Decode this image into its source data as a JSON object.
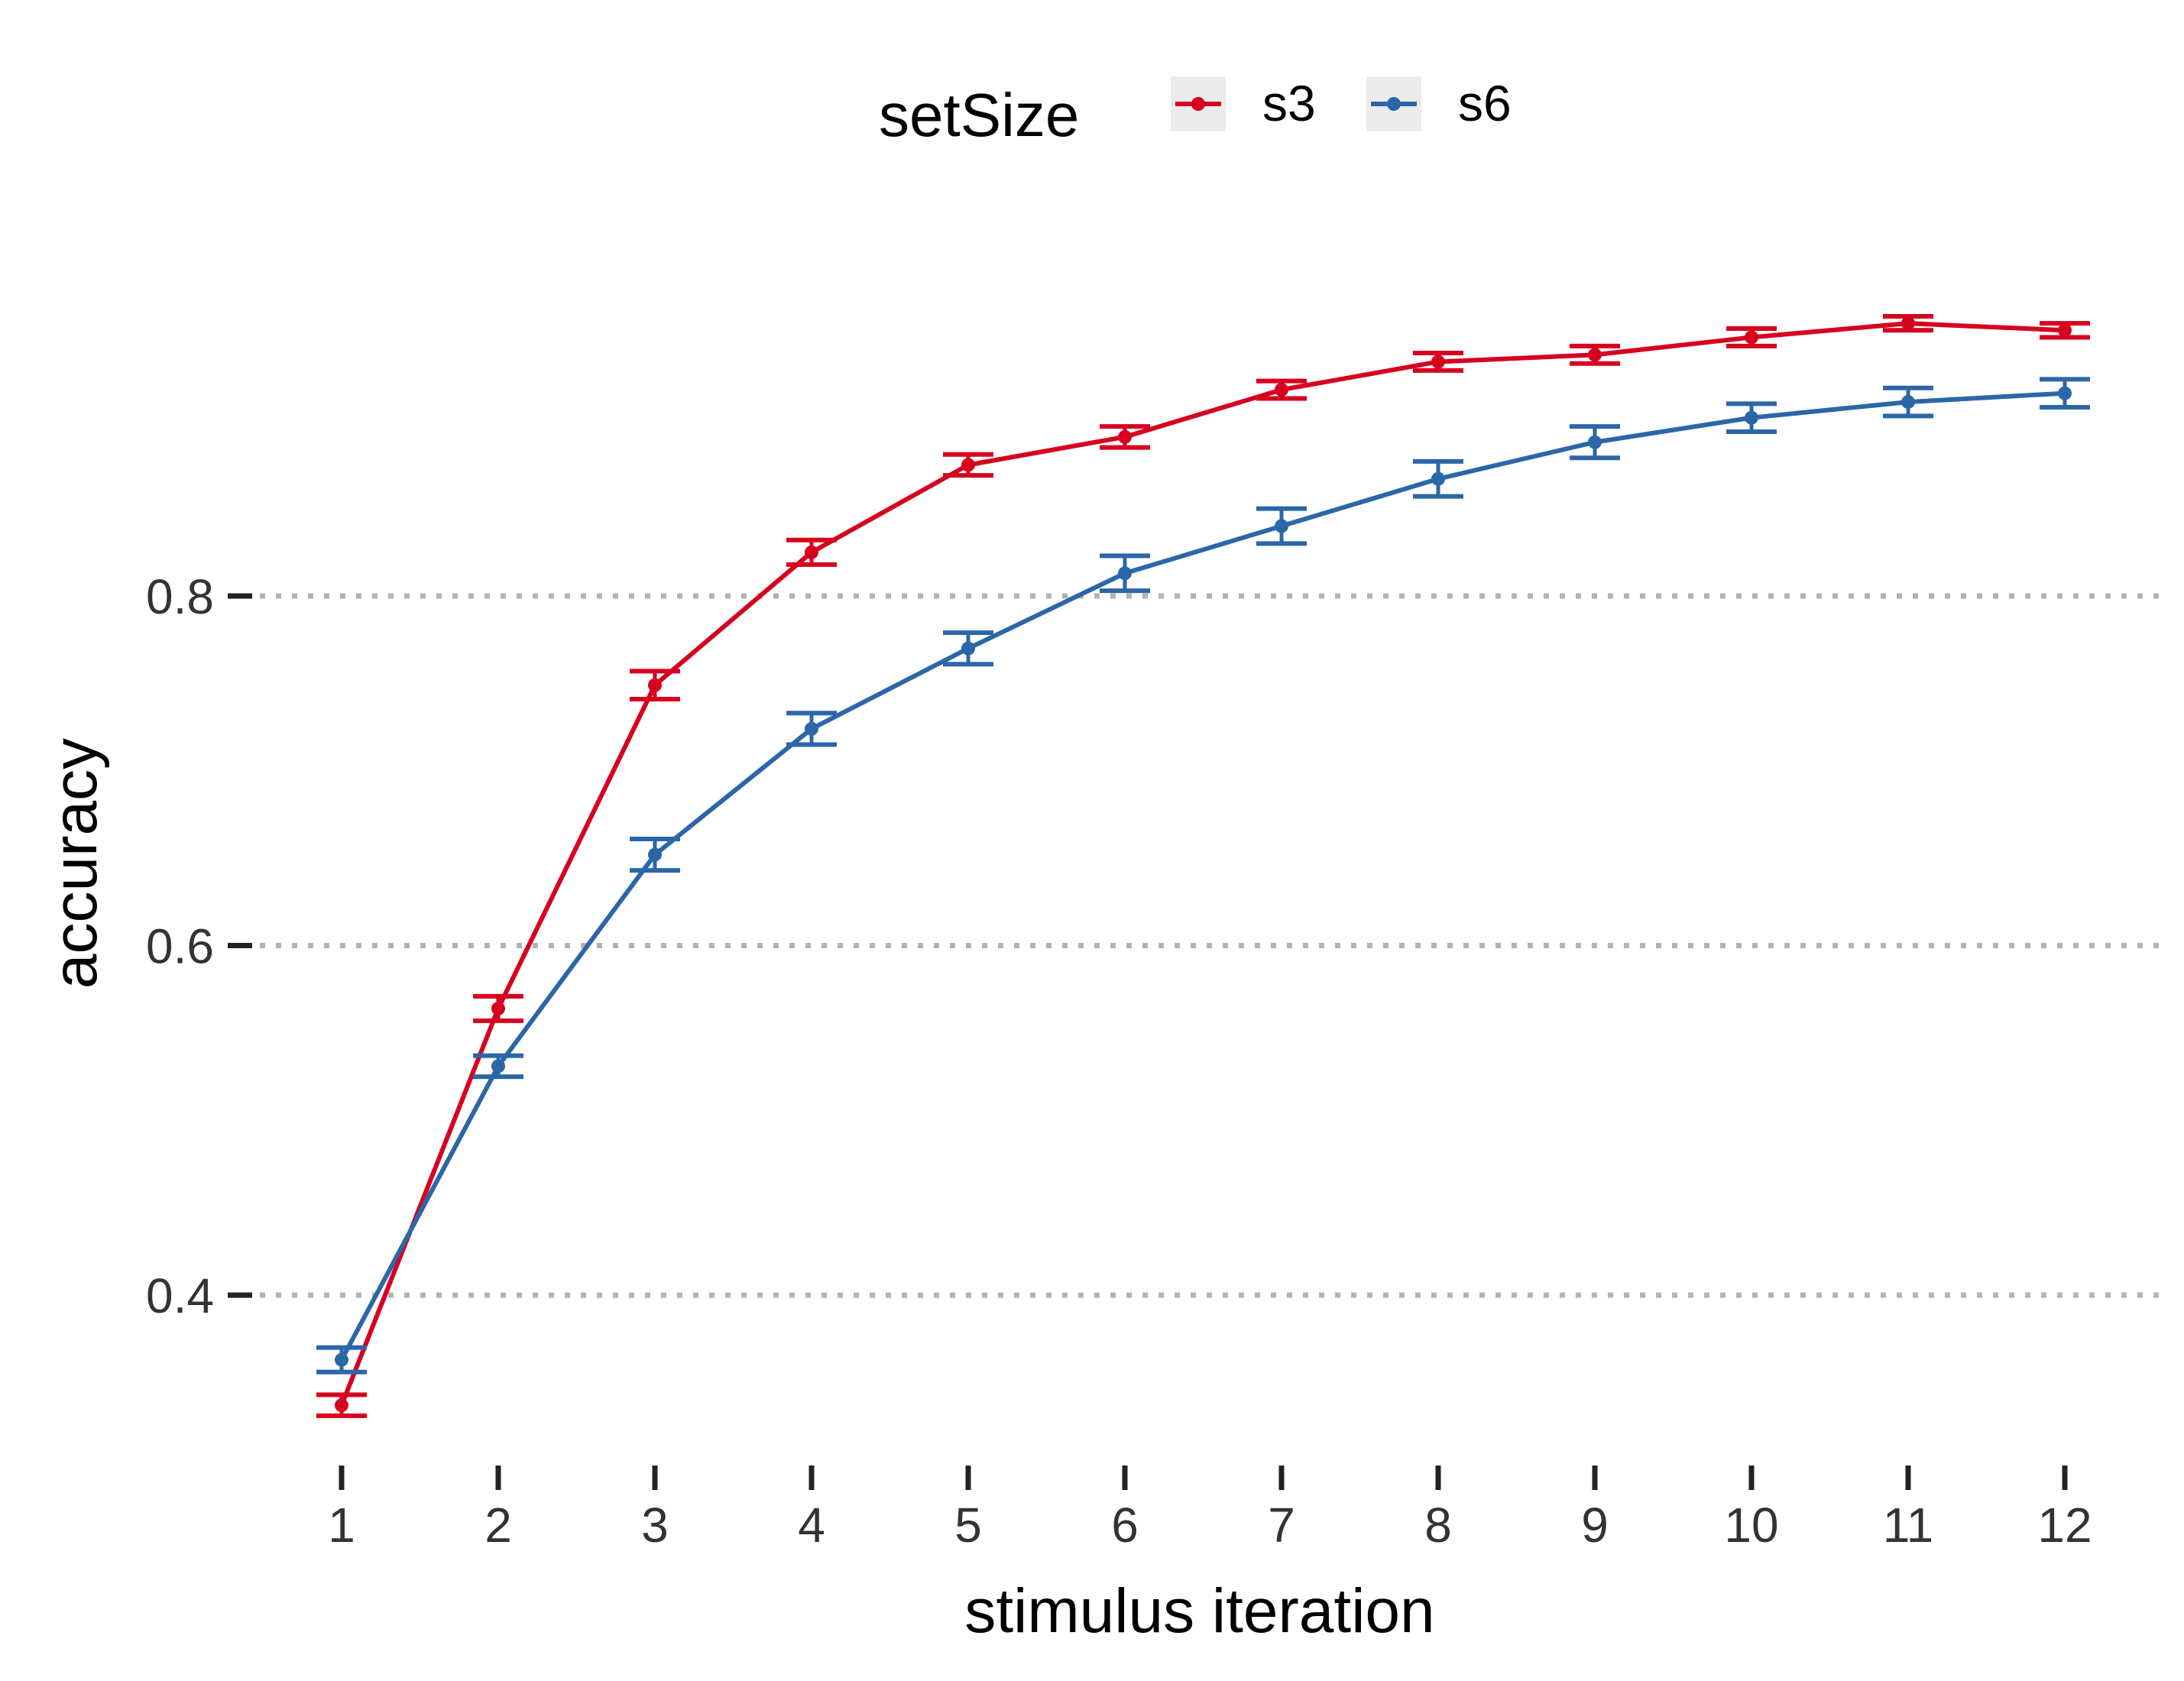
{
  "chart_data": {
    "type": "line",
    "title": "",
    "xlabel": "stimulus iteration",
    "ylabel": "accuracy",
    "x": [
      1,
      2,
      3,
      4,
      5,
      6,
      7,
      8,
      9,
      10,
      11,
      12
    ],
    "xlim": [
      0.55,
      12.35
    ],
    "ylim": [
      0.312,
      0.935
    ],
    "yticks": [
      0.4,
      0.6,
      0.8
    ],
    "ytick_labels": [
      "0.4",
      "0.6",
      "0.8"
    ],
    "grid": "horizontal-dotted",
    "legend": {
      "title": "setSize",
      "position": "top"
    },
    "series": [
      {
        "name": "s3",
        "color": "#d7001e",
        "values": [
          0.337,
          0.564,
          0.749,
          0.825,
          0.875,
          0.891,
          0.918,
          0.934,
          0.938,
          0.948,
          0.956,
          0.952
        ],
        "errors": [
          0.006,
          0.007,
          0.008,
          0.007,
          0.006,
          0.006,
          0.005,
          0.005,
          0.005,
          0.005,
          0.004,
          0.004
        ]
      },
      {
        "name": "s6",
        "color": "#2b67a8",
        "values": [
          0.363,
          0.531,
          0.652,
          0.724,
          0.77,
          0.813,
          0.84,
          0.867,
          0.888,
          0.902,
          0.911,
          0.916
        ],
        "errors": [
          0.007,
          0.006,
          0.009,
          0.009,
          0.009,
          0.01,
          0.01,
          0.01,
          0.009,
          0.008,
          0.008,
          0.008
        ]
      }
    ]
  }
}
